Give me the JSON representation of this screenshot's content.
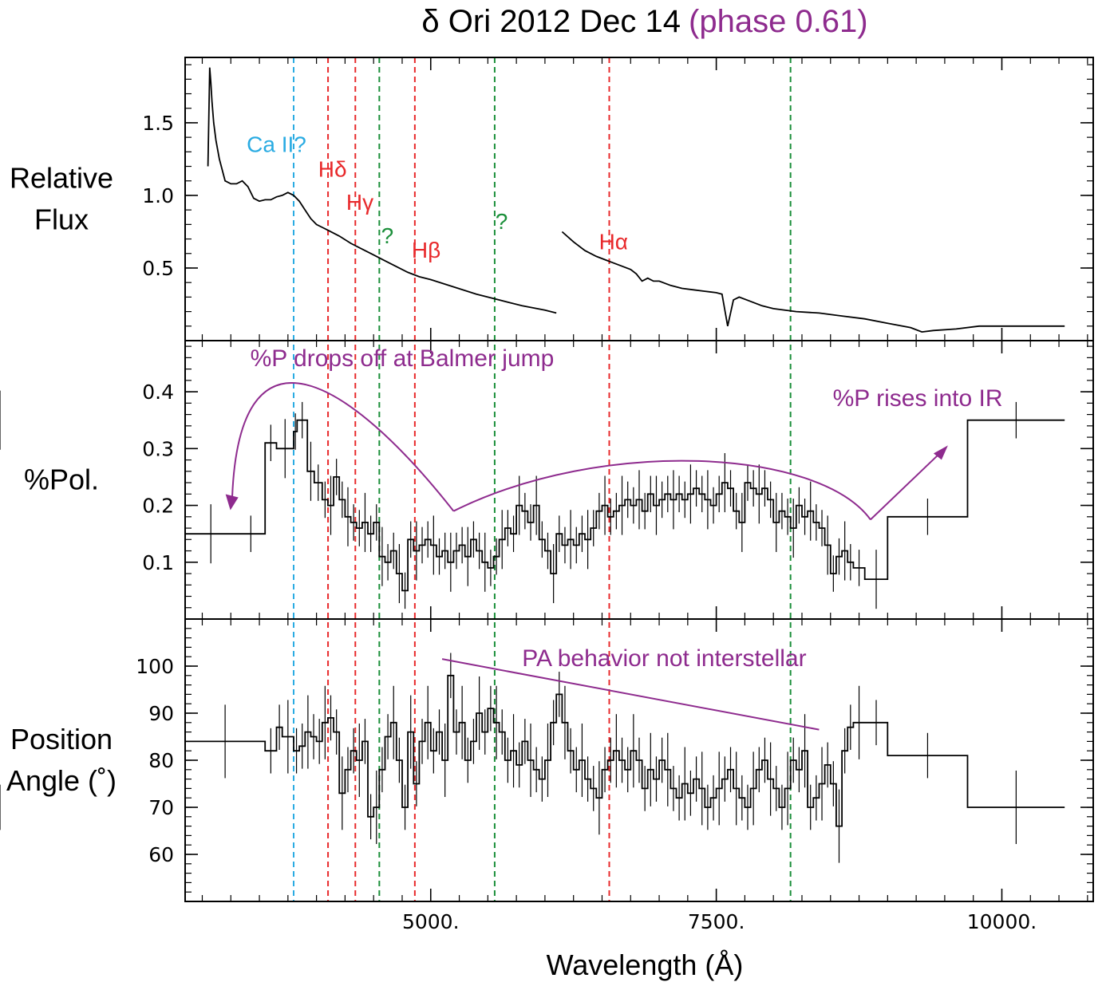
{
  "colors": {
    "text": "#000000",
    "annotation": "#8e2b8e",
    "ca_line": "#29abe2",
    "h_line": "#e8292b",
    "unknown_line": "#1b8f3a"
  },
  "title": {
    "main": "δ Ori 2012 Dec 14",
    "phase": "(phase 0.61)"
  },
  "chart_data": {
    "type": "line",
    "title": "δ Ori 2012 Dec 14 (phase 0.61)",
    "xlabel": "Wavelength (Å)",
    "xlim": [
      2850,
      10800
    ],
    "xticks": [
      5000,
      7500,
      10000
    ],
    "xtick_labels": [
      "5000.",
      "7500.",
      "10000."
    ],
    "panels": [
      {
        "name": "flux",
        "ylabel_lines": [
          "Relative",
          "Flux"
        ],
        "ylim": [
          0.0,
          1.95
        ],
        "yticks": [
          0.5,
          1.0,
          1.5
        ],
        "ytick_labels": [
          "0.5",
          "1.0",
          "1.5"
        ],
        "segments": [
          {
            "x": [
              3050,
              3065,
              3075,
              3085,
              3100,
              3120,
              3150,
              3200,
              3250,
              3300,
              3350,
              3400,
              3450,
              3500,
              3550,
              3600,
              3650,
              3700,
              3750,
              3800,
              3850,
              3900,
              3950,
              4000,
              4050,
              4100,
              4200,
              4300,
              4400,
              4500,
              4600,
              4700,
              4800,
              4900,
              5000,
              5200,
              5400,
              5600,
              5800,
              6000,
              6100
            ],
            "y": [
              1.2,
              1.88,
              1.78,
              1.65,
              1.5,
              1.38,
              1.25,
              1.1,
              1.08,
              1.08,
              1.1,
              1.06,
              0.98,
              0.96,
              0.97,
              0.97,
              0.99,
              1.0,
              1.02,
              1.0,
              0.96,
              0.9,
              0.84,
              0.8,
              0.78,
              0.76,
              0.72,
              0.67,
              0.63,
              0.59,
              0.55,
              0.51,
              0.47,
              0.44,
              0.42,
              0.37,
              0.32,
              0.28,
              0.24,
              0.21,
              0.19
            ]
          },
          {
            "x": [
              6150,
              6250,
              6350,
              6450,
              6550,
              6650,
              6750,
              6800,
              6850,
              6900,
              6950,
              7000,
              7100,
              7200,
              7300,
              7400,
              7500,
              7550,
              7600,
              7650,
              7700,
              7800,
              7900,
              8000,
              8200,
              8400,
              8600,
              8800,
              9000,
              9200,
              9300,
              9400,
              9600,
              9800,
              10000,
              10200,
              10550
            ],
            "y": [
              0.75,
              0.68,
              0.62,
              0.58,
              0.55,
              0.52,
              0.49,
              0.46,
              0.41,
              0.43,
              0.41,
              0.41,
              0.38,
              0.36,
              0.35,
              0.34,
              0.33,
              0.32,
              0.1,
              0.28,
              0.3,
              0.27,
              0.24,
              0.22,
              0.2,
              0.19,
              0.17,
              0.15,
              0.12,
              0.09,
              0.06,
              0.07,
              0.08,
              0.1,
              0.1,
              0.1,
              0.1
            ]
          }
        ],
        "line_labels": [
          {
            "text": "Ca II?",
            "x": 3650,
            "y": 1.3,
            "color_key": "ca_line"
          },
          {
            "text": "Hδ",
            "x": 4140,
            "y": 1.13,
            "color_key": "h_line"
          },
          {
            "text": "Hγ",
            "x": 4380,
            "y": 0.9,
            "color_key": "h_line"
          },
          {
            "text": "?",
            "x": 4620,
            "y": 0.67,
            "color_key": "unknown_line"
          },
          {
            "text": "Hβ",
            "x": 4960,
            "y": 0.57,
            "color_key": "h_line"
          },
          {
            "text": "?",
            "x": 5620,
            "y": 0.77,
            "color_key": "unknown_line"
          },
          {
            "text": "Hα",
            "x": 6600,
            "y": 0.63,
            "color_key": "h_line"
          }
        ]
      },
      {
        "name": "polarization",
        "ylabel_lines": [
          "%Pol."
        ],
        "ylim": [
          0.0,
          0.49
        ],
        "yticks": [
          0.1,
          0.2,
          0.3,
          0.4
        ],
        "ytick_labels": [
          "0.1",
          "0.2",
          "0.3",
          "0.4"
        ],
        "steps": {
          "x": [
            2850,
            3300,
            3550,
            3650,
            3800,
            3830,
            3920,
            3980,
            4050,
            4100,
            4150,
            4200,
            4250,
            4300,
            4350,
            4400,
            4450,
            4500,
            4550,
            4600,
            4650,
            4700,
            4750,
            4800,
            4850,
            4900,
            4950,
            5000,
            5050,
            5100,
            5150,
            5200,
            5250,
            5300,
            5350,
            5400,
            5450,
            5500,
            5550,
            5600,
            5650,
            5700,
            5750,
            5800,
            5850,
            5900,
            5950,
            6000,
            6050,
            6100,
            6150,
            6200,
            6250,
            6300,
            6350,
            6400,
            6450,
            6500,
            6550,
            6600,
            6650,
            6700,
            6750,
            6800,
            6850,
            6900,
            6950,
            7000,
            7050,
            7100,
            7150,
            7200,
            7250,
            7300,
            7350,
            7400,
            7450,
            7500,
            7550,
            7600,
            7650,
            7700,
            7750,
            7800,
            7850,
            7900,
            7950,
            8000,
            8050,
            8100,
            8150,
            8200,
            8250,
            8300,
            8350,
            8400,
            8450,
            8500,
            8550,
            8600,
            8650,
            8700,
            8800,
            9000,
            9700,
            10550
          ],
          "y": [
            0.15,
            0.15,
            0.31,
            0.3,
            0.33,
            0.35,
            0.26,
            0.24,
            0.21,
            0.2,
            0.25,
            0.21,
            0.18,
            0.17,
            0.16,
            0.17,
            0.15,
            0.17,
            0.11,
            0.1,
            0.12,
            0.08,
            0.05,
            0.14,
            0.12,
            0.13,
            0.14,
            0.13,
            0.11,
            0.12,
            0.1,
            0.12,
            0.13,
            0.11,
            0.14,
            0.12,
            0.1,
            0.09,
            0.11,
            0.14,
            0.16,
            0.15,
            0.2,
            0.19,
            0.17,
            0.2,
            0.14,
            0.12,
            0.08,
            0.15,
            0.13,
            0.14,
            0.13,
            0.15,
            0.14,
            0.16,
            0.19,
            0.2,
            0.18,
            0.19,
            0.2,
            0.21,
            0.2,
            0.21,
            0.19,
            0.22,
            0.2,
            0.21,
            0.22,
            0.21,
            0.22,
            0.21,
            0.22,
            0.23,
            0.22,
            0.21,
            0.2,
            0.22,
            0.24,
            0.23,
            0.19,
            0.17,
            0.24,
            0.23,
            0.22,
            0.23,
            0.21,
            0.17,
            0.19,
            0.18,
            0.16,
            0.2,
            0.18,
            0.19,
            0.17,
            0.16,
            0.13,
            0.08,
            0.11,
            0.12,
            0.1,
            0.09,
            0.07,
            0.18,
            0.35,
            0.35
          ]
        },
        "annotations": [
          {
            "text": "%P drops off at Balmer jump",
            "x": 3420,
            "y": 0.445
          },
          {
            "text": "%P rises into IR",
            "x": 8520,
            "y": 0.375
          }
        ]
      },
      {
        "name": "position_angle",
        "ylabel_lines": [
          "Position",
          "Angle (˚)"
        ],
        "ylim": [
          50,
          110
        ],
        "yticks": [
          60,
          70,
          80,
          90,
          100
        ],
        "ytick_labels": [
          "60",
          "70",
          "80",
          "90",
          "100"
        ],
        "steps": {
          "x": [
            2850,
            3550,
            3650,
            3700,
            3800,
            3850,
            3900,
            3950,
            4000,
            4050,
            4100,
            4150,
            4200,
            4250,
            4300,
            4350,
            4400,
            4450,
            4500,
            4550,
            4600,
            4650,
            4700,
            4750,
            4800,
            4850,
            4900,
            4950,
            5000,
            5050,
            5100,
            5150,
            5200,
            5250,
            5300,
            5350,
            5400,
            5450,
            5500,
            5550,
            5600,
            5650,
            5700,
            5750,
            5800,
            5850,
            5900,
            5950,
            6000,
            6050,
            6100,
            6150,
            6200,
            6250,
            6300,
            6350,
            6400,
            6450,
            6500,
            6550,
            6600,
            6650,
            6700,
            6750,
            6800,
            6850,
            6900,
            6950,
            7000,
            7050,
            7100,
            7150,
            7200,
            7250,
            7300,
            7350,
            7400,
            7450,
            7500,
            7550,
            7600,
            7650,
            7700,
            7750,
            7800,
            7850,
            7900,
            7950,
            8000,
            8050,
            8100,
            8150,
            8200,
            8250,
            8300,
            8350,
            8400,
            8450,
            8500,
            8550,
            8600,
            8650,
            8700,
            8800,
            9000,
            9700,
            10550
          ],
          "y": [
            84,
            82,
            87,
            85,
            82,
            83,
            86,
            85,
            84,
            88,
            89,
            86,
            73,
            78,
            82,
            80,
            84,
            68,
            70,
            78,
            85,
            88,
            80,
            70,
            86,
            75,
            84,
            88,
            82,
            86,
            80,
            98,
            86,
            88,
            80,
            84,
            90,
            86,
            91,
            88,
            86,
            80,
            82,
            79,
            84,
            80,
            78,
            76,
            80,
            88,
            94,
            88,
            82,
            78,
            80,
            76,
            74,
            72,
            78,
            80,
            82,
            80,
            78,
            82,
            80,
            74,
            78,
            76,
            80,
            78,
            74,
            72,
            75,
            73,
            76,
            74,
            70,
            72,
            74,
            76,
            78,
            74,
            72,
            70,
            74,
            78,
            80,
            76,
            74,
            70,
            74,
            80,
            78,
            82,
            70,
            72,
            75,
            79,
            75,
            66,
            82,
            87,
            88,
            88,
            81,
            70,
            70
          ]
        },
        "trend_line": {
          "x": [
            5100,
            8400
          ],
          "y": [
            101.5,
            86.5
          ]
        },
        "annotations": [
          {
            "text": "PA behavior not interstellar",
            "x": 5800,
            "y": 100
          }
        ]
      }
    ],
    "line_markers": [
      {
        "x": 3800,
        "color_key": "ca_line"
      },
      {
        "x": 4101,
        "color_key": "h_line"
      },
      {
        "x": 4340,
        "color_key": "h_line"
      },
      {
        "x": 4550,
        "color_key": "unknown_line"
      },
      {
        "x": 4861,
        "color_key": "h_line"
      },
      {
        "x": 5560,
        "color_key": "unknown_line"
      },
      {
        "x": 6563,
        "color_key": "h_line"
      },
      {
        "x": 8150,
        "color_key": "unknown_line"
      }
    ]
  }
}
